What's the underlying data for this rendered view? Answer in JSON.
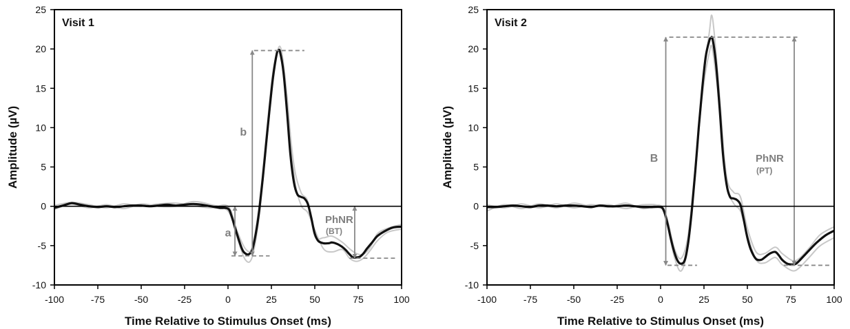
{
  "colors": {
    "mean_trace": "#111111",
    "individual_traces": "#c8c8c8",
    "annotation": "#888888",
    "zero_line": "#000000"
  },
  "chart_data": [
    {
      "type": "line",
      "title": "Visit 1",
      "xlabel": "Time Relative to Stimulus Onset (ms)",
      "ylabel": "Amplitude (µV)",
      "xlim": [
        -100,
        100
      ],
      "ylim": [
        -10,
        25
      ],
      "xticks": [
        -100,
        -75,
        -50,
        -25,
        0,
        25,
        50,
        75,
        100
      ],
      "yticks": [
        -10,
        -5,
        0,
        5,
        10,
        15,
        20,
        25
      ],
      "xtick_labels": [
        "-100",
        "-75",
        "-50",
        "-25",
        "0",
        "25",
        "50",
        "75",
        "100"
      ],
      "ytick_labels": [
        "-10",
        "-5",
        "0",
        "5",
        "10",
        "15",
        "20",
        "25"
      ],
      "grid": false,
      "series": [
        {
          "role": "mean",
          "x": [
            -100,
            -95,
            -90,
            -85,
            -80,
            -75,
            -70,
            -65,
            -60,
            -55,
            -50,
            -45,
            -40,
            -35,
            -30,
            -25,
            -20,
            -15,
            -10,
            -5,
            0,
            2,
            5,
            8,
            10,
            12,
            14,
            16,
            18,
            20,
            22,
            24,
            26,
            28,
            29,
            30,
            32,
            34,
            36,
            38,
            40,
            42,
            44,
            46,
            48,
            50,
            52,
            55,
            58,
            60,
            63,
            66,
            68,
            70,
            72,
            74,
            76,
            78,
            80,
            83,
            86,
            90,
            95,
            100
          ],
          "y": [
            -0.2,
            0.1,
            0.4,
            0.2,
            0.0,
            -0.1,
            0.0,
            -0.1,
            0.0,
            0.1,
            0.1,
            0.0,
            0.1,
            0.2,
            0.1,
            0.2,
            0.3,
            0.2,
            0.0,
            -0.2,
            -0.3,
            -1.2,
            -3.4,
            -5.4,
            -6.0,
            -6.1,
            -5.5,
            -3.5,
            -0.5,
            3.5,
            8.0,
            12.5,
            16.5,
            19.3,
            19.8,
            19.6,
            17.0,
            12.0,
            6.5,
            3.0,
            1.5,
            1.2,
            1.0,
            0.3,
            -1.5,
            -3.5,
            -4.4,
            -4.7,
            -4.7,
            -4.6,
            -4.8,
            -5.2,
            -5.6,
            -6.1,
            -6.5,
            -6.5,
            -6.4,
            -6.0,
            -5.4,
            -4.6,
            -3.8,
            -3.2,
            -2.7,
            -2.6
          ]
        },
        {
          "role": "individual",
          "x": [
            -100,
            -90,
            -80,
            -70,
            -60,
            -50,
            -40,
            -30,
            -20,
            -10,
            0,
            5,
            10,
            14,
            18,
            22,
            26,
            30,
            34,
            38,
            42,
            46,
            50,
            55,
            60,
            66,
            70,
            74,
            78,
            82,
            86,
            92,
            100
          ],
          "y": [
            -0.4,
            0.3,
            -0.2,
            0.2,
            -0.3,
            0.3,
            0.0,
            0.0,
            0.6,
            0.2,
            -0.6,
            -3.8,
            -6.8,
            -6.4,
            -1.2,
            7.5,
            16.0,
            20.3,
            14.0,
            4.0,
            0.2,
            -0.8,
            -3.0,
            -5.4,
            -5.8,
            -5.5,
            -6.6,
            -7.0,
            -6.6,
            -5.6,
            -4.4,
            -3.3,
            -2.9
          ]
        },
        {
          "role": "individual",
          "x": [
            -100,
            -90,
            -80,
            -70,
            -60,
            -50,
            -40,
            -30,
            -20,
            -10,
            0,
            5,
            10,
            14,
            18,
            22,
            26,
            30,
            34,
            38,
            42,
            46,
            50,
            55,
            60,
            66,
            70,
            74,
            78,
            82,
            86,
            92,
            100
          ],
          "y": [
            0.1,
            0.5,
            0.2,
            -0.2,
            0.3,
            0.0,
            0.3,
            0.4,
            0.1,
            -0.2,
            0.0,
            -3.0,
            -5.4,
            -5.2,
            0.2,
            8.8,
            17.2,
            19.8,
            13.0,
            5.2,
            1.8,
            0.6,
            -3.8,
            -4.0,
            -3.8,
            -4.6,
            -5.4,
            -6.0,
            -6.1,
            -5.2,
            -3.5,
            -2.8,
            -2.3
          ]
        }
      ],
      "annotations": {
        "a_label": "a",
        "b_label": "b",
        "phnr_label": "PhNR",
        "phnr_sub": "(BT)",
        "a_wave": {
          "baseline": 0,
          "trough": -6.3,
          "x": 4
        },
        "b_wave": {
          "trough": -6.3,
          "peak": 19.8,
          "x": 14
        },
        "phnr": {
          "baseline": 0,
          "trough": -6.6,
          "x": 73
        },
        "dashed_levels": [
          {
            "y": 19.8,
            "x_from": 15,
            "x_to": 44
          },
          {
            "y": -6.3,
            "x_from": 2,
            "x_to": 24
          },
          {
            "y": -6.6,
            "x_from": 70,
            "x_to": 97
          }
        ]
      }
    },
    {
      "type": "line",
      "title": "Visit 2",
      "xlabel": "Time Relative to Stimulus Onset (ms)",
      "ylabel": "Amplitude (µV)",
      "xlim": [
        -100,
        100
      ],
      "ylim": [
        -10,
        25
      ],
      "xticks": [
        -100,
        -75,
        -50,
        -25,
        0,
        25,
        50,
        75,
        100
      ],
      "yticks": [
        -10,
        -5,
        0,
        5,
        10,
        15,
        20,
        25
      ],
      "xtick_labels": [
        "-100",
        "-75",
        "-50",
        "-25",
        "0",
        "25",
        "50",
        "75",
        "100"
      ],
      "ytick_labels": [
        "-10",
        "-5",
        "0",
        "5",
        "10",
        "15",
        "20",
        "25"
      ],
      "grid": false,
      "series": [
        {
          "role": "mean",
          "x": [
            -100,
            -95,
            -90,
            -85,
            -80,
            -75,
            -70,
            -65,
            -60,
            -55,
            -50,
            -45,
            -40,
            -35,
            -30,
            -25,
            -20,
            -15,
            -10,
            -5,
            0,
            2,
            4,
            6,
            8,
            10,
            12,
            14,
            16,
            18,
            20,
            22,
            24,
            26,
            28,
            29,
            30,
            32,
            34,
            36,
            38,
            40,
            42,
            44,
            46,
            48,
            50,
            52,
            55,
            58,
            60,
            63,
            66,
            68,
            70,
            73,
            76,
            78,
            80,
            83,
            86,
            90,
            95,
            100
          ],
          "y": [
            -0.1,
            -0.1,
            0.0,
            0.1,
            0.0,
            -0.1,
            0.1,
            0.1,
            0.0,
            0.1,
            0.1,
            0.0,
            -0.1,
            0.1,
            0.0,
            0.0,
            0.1,
            0.0,
            -0.1,
            -0.1,
            -0.1,
            -0.6,
            -2.2,
            -4.2,
            -5.9,
            -7.0,
            -7.3,
            -6.8,
            -4.5,
            -0.5,
            4.5,
            10.0,
            15.0,
            19.0,
            21.0,
            21.4,
            21.2,
            18.0,
            12.5,
            6.5,
            2.8,
            1.2,
            1.0,
            0.8,
            0.2,
            -1.8,
            -4.0,
            -5.5,
            -6.7,
            -6.8,
            -6.5,
            -6.0,
            -5.8,
            -6.2,
            -6.8,
            -7.3,
            -7.4,
            -7.3,
            -6.9,
            -6.2,
            -5.5,
            -4.6,
            -3.7,
            -3.1
          ]
        },
        {
          "role": "individual",
          "x": [
            -100,
            -90,
            -80,
            -70,
            -60,
            -50,
            -40,
            -30,
            -20,
            -10,
            0,
            4,
            8,
            12,
            16,
            20,
            24,
            28,
            30,
            34,
            38,
            42,
            46,
            50,
            55,
            60,
            66,
            70,
            76,
            80,
            86,
            92,
            100
          ],
          "y": [
            -0.6,
            0.2,
            -0.3,
            0.3,
            -0.2,
            0.4,
            0.0,
            0.2,
            -0.3,
            0.2,
            -0.1,
            -2.5,
            -6.5,
            -8.2,
            -4.8,
            4.0,
            14.5,
            22.0,
            23.8,
            14.0,
            3.0,
            0.4,
            -0.6,
            -3.6,
            -6.8,
            -7.2,
            -6.5,
            -7.4,
            -8.2,
            -7.8,
            -6.4,
            -5.0,
            -4.0
          ]
        },
        {
          "role": "individual",
          "x": [
            -100,
            -90,
            -80,
            -70,
            -60,
            -50,
            -40,
            -30,
            -20,
            -10,
            0,
            4,
            8,
            12,
            16,
            20,
            24,
            28,
            30,
            34,
            38,
            42,
            46,
            50,
            55,
            60,
            66,
            70,
            76,
            80,
            86,
            92,
            100
          ],
          "y": [
            0.2,
            -0.2,
            0.3,
            -0.2,
            0.3,
            -0.2,
            0.2,
            -0.1,
            0.4,
            -0.3,
            0.1,
            -1.8,
            -5.4,
            -6.6,
            -3.5,
            5.0,
            14.0,
            19.5,
            19.8,
            12.5,
            3.8,
            1.8,
            1.2,
            -2.8,
            -5.8,
            -6.0,
            -5.2,
            -6.0,
            -6.9,
            -6.6,
            -5.2,
            -3.6,
            -2.6
          ]
        }
      ],
      "annotations": {
        "B_label": "B",
        "phnr_label": "PhNR",
        "phnr_sub": "(PT)",
        "B_wave": {
          "trough": -7.5,
          "peak": 21.5,
          "x": 3
        },
        "phnr": {
          "trough": -7.5,
          "peak": 21.5,
          "x": 77
        },
        "dashed_levels": [
          {
            "y": 21.5,
            "x_from": 5,
            "x_to": 80
          },
          {
            "y": -7.5,
            "x_from": 4,
            "x_to": 21
          },
          {
            "y": -7.5,
            "x_from": 71,
            "x_to": 98
          }
        ]
      }
    }
  ]
}
